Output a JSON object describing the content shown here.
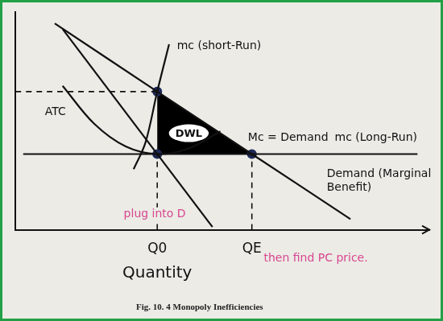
{
  "chart_data": {
    "type": "line",
    "title": "Fig. 10. 4 Monopoly Inefficiencies",
    "x_label": "Quantity",
    "xlim": [
      0,
      10.5
    ],
    "ylim": [
      0,
      11.5
    ],
    "xticks": [
      {
        "value": 3.6,
        "label": "Q0"
      },
      {
        "value": 6,
        "label": "QE"
      }
    ],
    "yticks": [],
    "tick_labels": "x",
    "grid": false,
    "series": [
      {
        "type": "area",
        "label": "DWL",
        "x": [
          3.6,
          3.6,
          6
        ],
        "values": [
          7.3,
          4,
          4
        ],
        "color": "#000000"
      },
      {
        "x": [
          1,
          3.6,
          6,
          8.5
        ],
        "values": [
          10.9,
          7.3,
          4,
          0.56
        ],
        "color": "#111111",
        "line_style": "solid"
      },
      {
        "x": [
          1.2,
          5
        ],
        "values": [
          10.6,
          0.15
        ],
        "color": "#111111",
        "line_style": "solid"
      },
      {
        "x": [
          0.2,
          10.2
        ],
        "values": [
          4,
          4
        ],
        "color": "#111111",
        "line_style": "solid"
      },
      {
        "x": [
          3.0,
          3.3,
          3.6,
          3.9
        ],
        "values": [
          3.2,
          4.6,
          7.3,
          9.8
        ],
        "color": "#111111",
        "line_style": "solid"
      },
      {
        "x": [
          1.2,
          2.0,
          2.8,
          3.6,
          4.4,
          5.2
        ],
        "values": [
          7.6,
          5.6,
          4.4,
          4.0,
          4.3,
          5.2
        ],
        "color": "#111111",
        "line_style": "solid"
      },
      {
        "x": [
          0,
          3.6
        ],
        "values": [
          7.3,
          7.3
        ],
        "color": "#111111",
        "line_style": "dashed"
      },
      {
        "x": [
          3.6,
          3.6
        ],
        "values": [
          0,
          4
        ],
        "color": "#111111",
        "line_style": "dashed"
      },
      {
        "x": [
          6,
          6
        ],
        "values": [
          0,
          4
        ],
        "color": "#111111",
        "line_style": "dashed"
      },
      {
        "type": "scatter",
        "x": [
          3.6,
          3.6,
          6
        ],
        "values": [
          7.3,
          4,
          4
        ],
        "color": "#1f2a5a",
        "marker": "circle",
        "line_style": "none"
      }
    ],
    "annotations": [
      {
        "text": "mc (short-Run)",
        "x": 4.1,
        "y": 9.7,
        "color": "#111111"
      },
      {
        "text": "ATC",
        "x": 0.75,
        "y": 6.2,
        "color": "#111111"
      },
      {
        "text": "Mc = Demand",
        "x": 5.9,
        "y": 4.85,
        "color": "#111111"
      },
      {
        "text": "mc (Long-Run)",
        "x": 8.1,
        "y": 4.85,
        "color": "#111111"
      },
      {
        "text": "Demand (Marginal Benefit)",
        "x": 7.9,
        "y": 2.6,
        "color": "#111111"
      },
      {
        "text": "plug into D",
        "x": 2.75,
        "y": 0.8,
        "color": "#d9468f"
      },
      {
        "text": "then find PC price.",
        "x": 6.3,
        "y": -1.5,
        "color": "#d9468f"
      }
    ]
  }
}
